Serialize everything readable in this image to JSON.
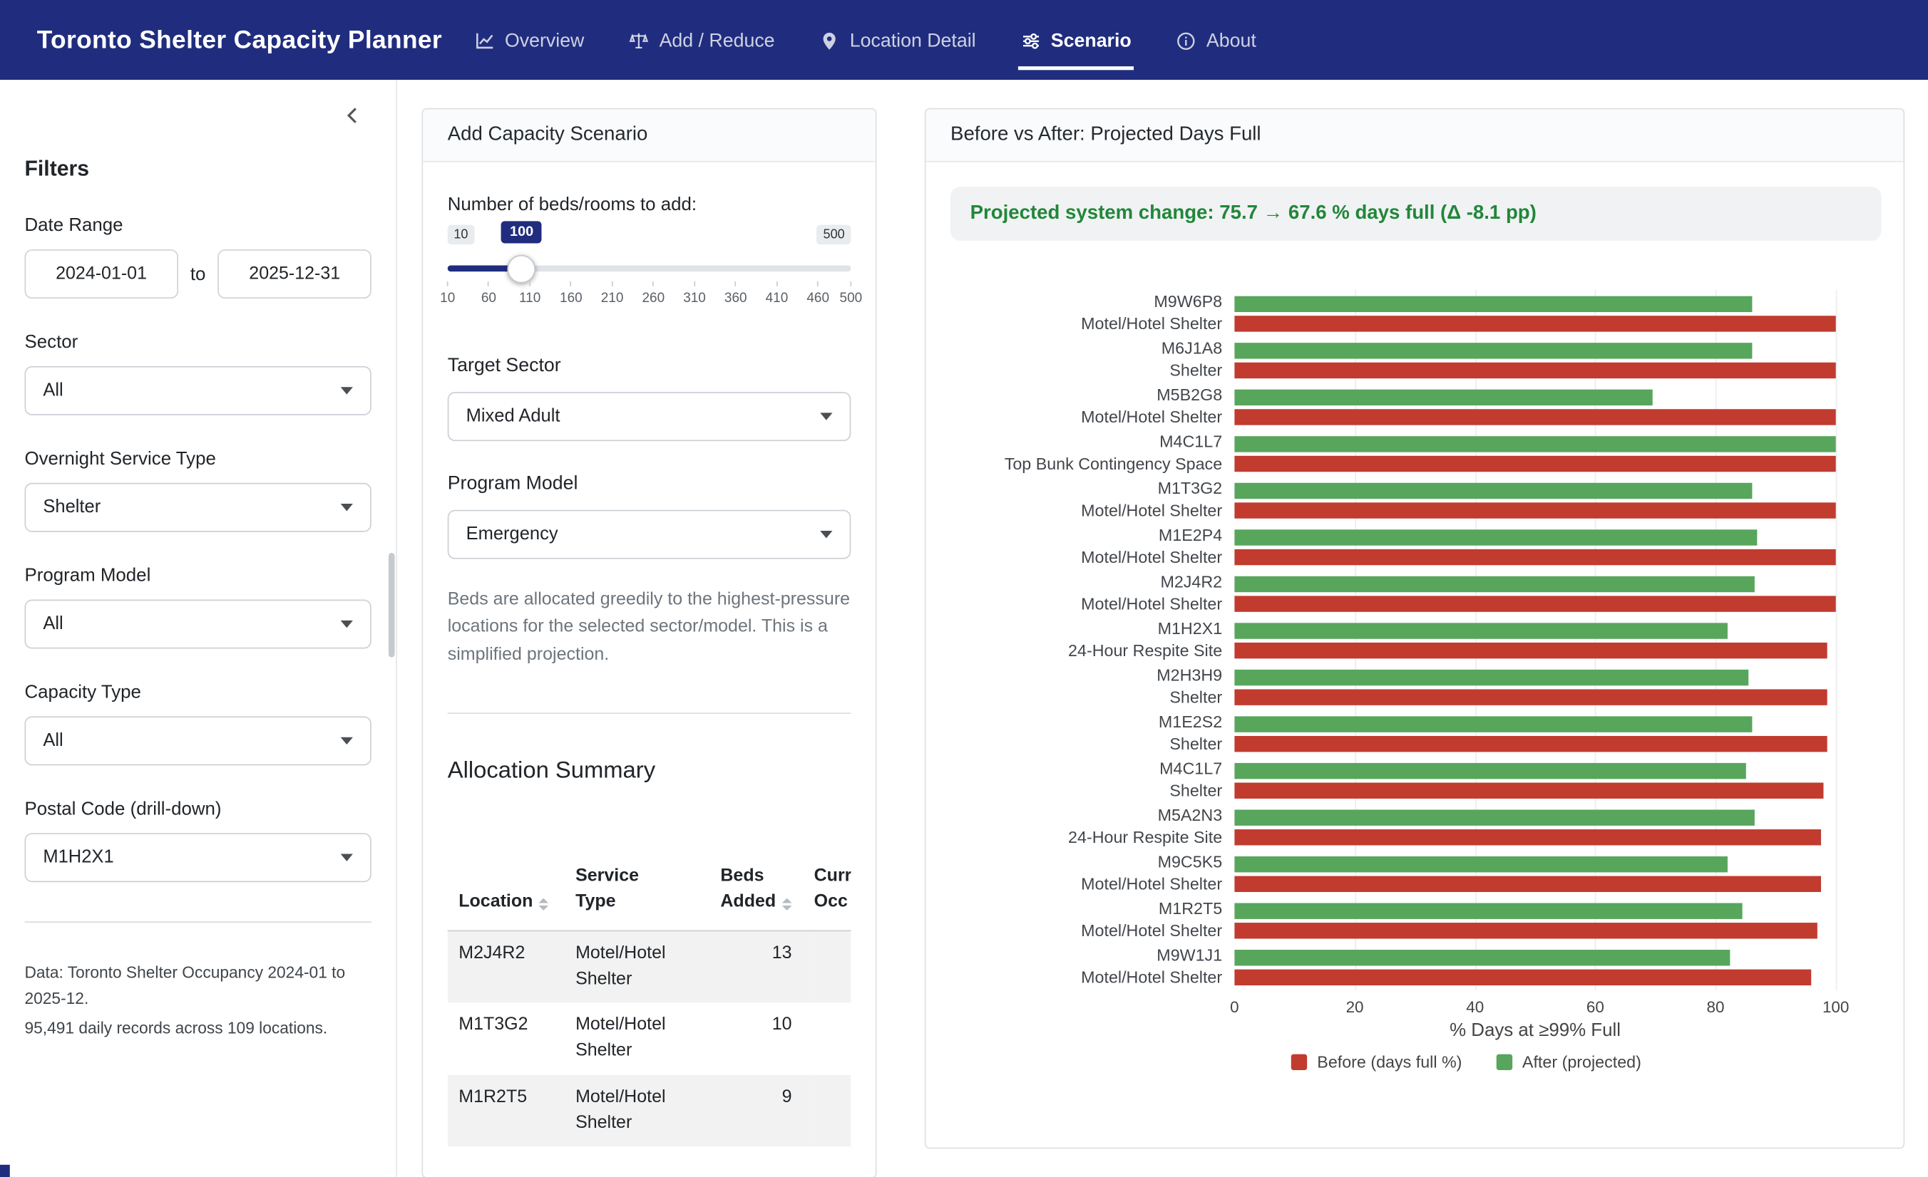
{
  "colors": {
    "navbar_bg": "#202d7e",
    "before_color": "#c13b2f",
    "after_color": "#57a65c",
    "banner_green": "#218739"
  },
  "app": {
    "title": "Toronto Shelter Capacity Planner"
  },
  "nav": {
    "items": [
      {
        "label": "Overview",
        "icon": "line-chart-icon"
      },
      {
        "label": "Add / Reduce",
        "icon": "scales-icon"
      },
      {
        "label": "Location Detail",
        "icon": "map-pin-icon"
      },
      {
        "label": "Scenario",
        "icon": "sliders-icon",
        "active": true
      },
      {
        "label": "About",
        "icon": "info-icon"
      }
    ]
  },
  "sidebar": {
    "title": "Filters",
    "date_range": {
      "label": "Date Range",
      "start": "2024-01-01",
      "separator": "to",
      "end": "2025-12-31"
    },
    "filters": [
      {
        "label": "Sector",
        "value": "All"
      },
      {
        "label": "Overnight Service Type",
        "value": "Shelter"
      },
      {
        "label": "Program Model",
        "value": "All"
      },
      {
        "label": "Capacity Type",
        "value": "All"
      },
      {
        "label": "Postal Code (drill-down)",
        "value": "M1H2X1"
      }
    ],
    "footer": [
      "Data: Toronto Shelter Occupancy 2024-01 to 2025-12.",
      "95,491 daily records across 109 locations."
    ]
  },
  "scenario_card": {
    "title": "Add Capacity Scenario",
    "slider": {
      "label": "Number of beds/rooms to add:",
      "min": "10",
      "max": "500",
      "value": "100",
      "ticks": [
        "10",
        "60",
        "110",
        "160",
        "210",
        "260",
        "310",
        "360",
        "410",
        "460",
        "500"
      ]
    },
    "target_sector": {
      "label": "Target Sector",
      "value": "Mixed Adult"
    },
    "program_model": {
      "label": "Program Model",
      "value": "Emergency"
    },
    "helper_text": "Beds are allocated greedily to the highest-pressure locations for the selected sector/model. This is a simplified projection.",
    "allocation": {
      "title": "Allocation Summary",
      "columns": [
        {
          "line1": "",
          "line2": "Location",
          "sortable": true
        },
        {
          "line1": "Service",
          "line2": "Type",
          "sortable": false
        },
        {
          "line1": "Beds",
          "line2": "Added",
          "sortable": true
        },
        {
          "line1": "Curre",
          "line2": "Occ",
          "sortable": false
        }
      ],
      "rows": [
        {
          "location": "M2J4R2",
          "service_type": "Motel/Hotel Shelter",
          "beds_added": "13"
        },
        {
          "location": "M1T3G2",
          "service_type": "Motel/Hotel Shelter",
          "beds_added": "10"
        },
        {
          "location": "M1R2T5",
          "service_type": "Motel/Hotel Shelter",
          "beds_added": "9"
        }
      ]
    }
  },
  "chart_card": {
    "title": "Before vs After: Projected Days Full",
    "banner": "Projected system change: 75.7 → 67.6 % days full (Δ -8.1 pp)"
  },
  "chart_data": {
    "type": "bar",
    "orientation": "horizontal",
    "xlabel": "% Days at ≥99% Full",
    "xlim": [
      0,
      100
    ],
    "xticks": [
      0,
      20,
      40,
      60,
      80,
      100
    ],
    "legend_position": "bottom",
    "categories": [
      {
        "code": "M9W6P8",
        "type": "Motel/Hotel Shelter"
      },
      {
        "code": "M6J1A8",
        "type": "Shelter"
      },
      {
        "code": "M5B2G8",
        "type": "Motel/Hotel Shelter"
      },
      {
        "code": "M4C1L7",
        "type": "Top Bunk Contingency Space"
      },
      {
        "code": "M1T3G2",
        "type": "Motel/Hotel Shelter"
      },
      {
        "code": "M1E2P4",
        "type": "Motel/Hotel Shelter"
      },
      {
        "code": "M2J4R2",
        "type": "Motel/Hotel Shelter"
      },
      {
        "code": "M1H2X1",
        "type": "24-Hour Respite Site"
      },
      {
        "code": "M2H3H9",
        "type": "Shelter"
      },
      {
        "code": "M1E2S2",
        "type": "Shelter"
      },
      {
        "code": "M4C1L7",
        "type": "Shelter"
      },
      {
        "code": "M5A2N3",
        "type": "24-Hour Respite Site"
      },
      {
        "code": "M9C5K5",
        "type": "Motel/Hotel Shelter"
      },
      {
        "code": "M1R2T5",
        "type": "Motel/Hotel Shelter"
      },
      {
        "code": "M9W1J1",
        "type": "Motel/Hotel Shelter"
      }
    ],
    "series": [
      {
        "name": "Before (days full %)",
        "color": "#c13b2f",
        "values": [
          100,
          100,
          100,
          100,
          100,
          100,
          100,
          98.5,
          98.5,
          98.5,
          98,
          97.5,
          97.5,
          97,
          96
        ]
      },
      {
        "name": "After (projected)",
        "color": "#57a65c",
        "values": [
          86,
          86,
          69.5,
          100,
          86,
          87,
          86.5,
          82,
          85.5,
          86,
          85,
          86.5,
          82,
          84.5,
          82.5
        ]
      }
    ]
  }
}
